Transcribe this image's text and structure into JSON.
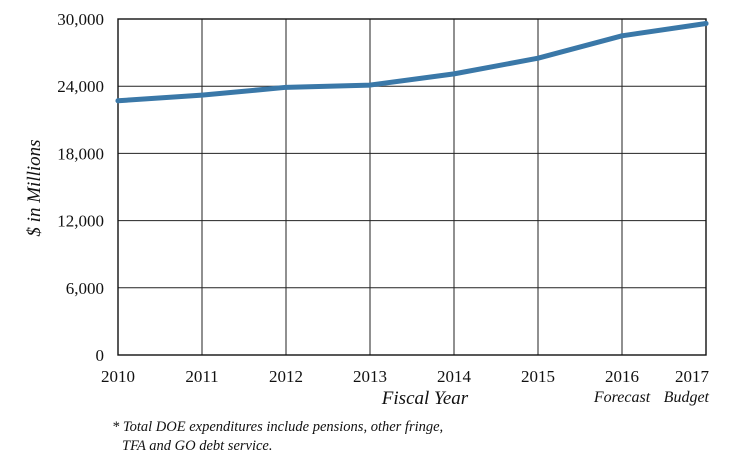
{
  "chart_data": {
    "type": "line",
    "categories": [
      "2010",
      "2011",
      "2012",
      "2013",
      "2014",
      "2015",
      "2016",
      "2017"
    ],
    "category_sublabels": [
      "",
      "",
      "",
      "",
      "",
      "",
      "Forecast",
      "Budget"
    ],
    "series": [
      {
        "values": [
          22700,
          23200,
          23900,
          24100,
          25100,
          26500,
          28500,
          29600
        ],
        "color": "#3a78a8"
      }
    ],
    "xlabel": "Fiscal Year",
    "ylabel": "$ in Millions",
    "ylim": [
      0,
      30000
    ],
    "yticks": [
      0,
      6000,
      12000,
      18000,
      24000,
      30000
    ],
    "ytick_labels": [
      "0",
      "6,000",
      "12,000",
      "18,000",
      "24,000",
      "30,000"
    ],
    "grid": true,
    "footnote_line1": "* Total DOE expenditures include pensions, other fringe,",
    "footnote_line2": "TFA and GO debt service."
  }
}
